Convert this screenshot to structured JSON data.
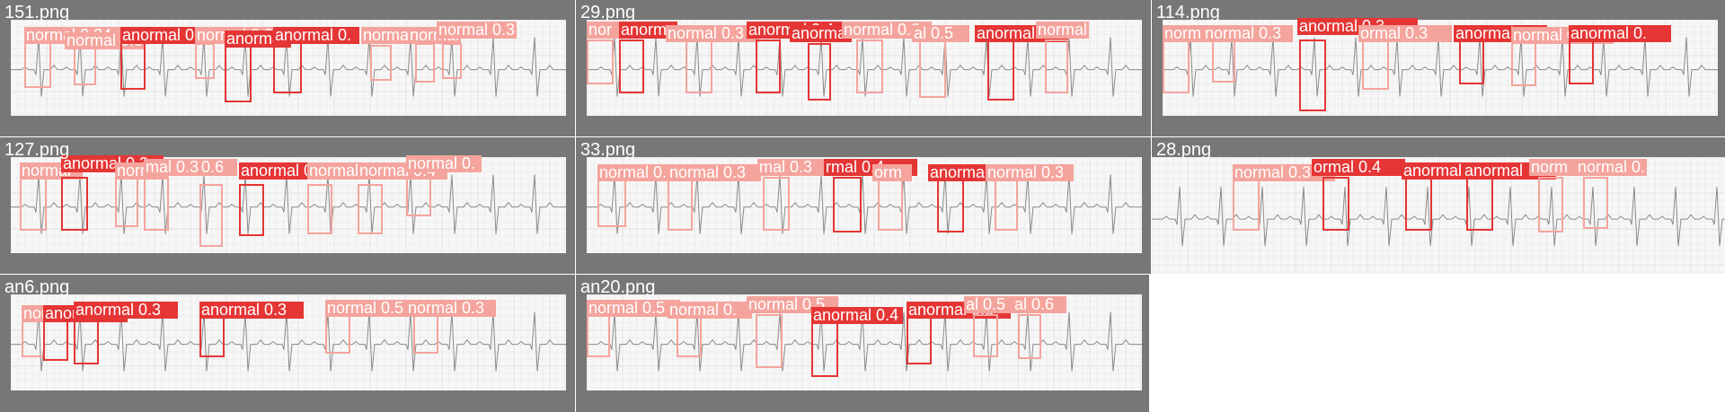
{
  "colors": {
    "background": "#ffffff",
    "tile": "#777777",
    "paper": "#f7f7f7",
    "grid": "#e1e1e1",
    "trace": "#8a8a8a",
    "anormal": "#e53535",
    "normal": "#f4a49d"
  },
  "tiles": [
    {
      "title": "151.png",
      "detections": [
        {
          "label": "normal 0.34",
          "cls": "normal"
        },
        {
          "label": "normal 0.3",
          "cls": "normal"
        },
        {
          "label": "anormal 0.3",
          "cls": "anormal"
        },
        {
          "label": "normal 0.3",
          "cls": "normal"
        },
        {
          "label": "anorma",
          "cls": "anormal"
        },
        {
          "label": "anormal 0.",
          "cls": "anormal"
        },
        {
          "label": "normal 0.3",
          "cls": "normal"
        },
        {
          "label": "normal",
          "cls": "normal"
        },
        {
          "label": "normal 0.3",
          "cls": "normal"
        }
      ]
    },
    {
      "title": "29.png",
      "detections": [
        {
          "label": "nor",
          "cls": "normal"
        },
        {
          "label": "anorma",
          "cls": "anormal"
        },
        {
          "label": "normal 0.3",
          "cls": "normal"
        },
        {
          "label": "anormal 0.4",
          "cls": "anormal"
        },
        {
          "label": "anormal",
          "cls": "anormal"
        },
        {
          "label": "normal 0.3",
          "cls": "normal"
        },
        {
          "label": "al 0.5",
          "cls": "normal"
        },
        {
          "label": "anormal 0.",
          "cls": "anormal"
        },
        {
          "label": "normal",
          "cls": "normal"
        }
      ]
    },
    {
      "title": "114.png",
      "detections": [
        {
          "label": "norm",
          "cls": "normal"
        },
        {
          "label": "normal 0.3",
          "cls": "normal"
        },
        {
          "label": "anormal 0.3",
          "cls": "anormal"
        },
        {
          "label": "ormal 0.3",
          "cls": "normal"
        },
        {
          "label": "anormal 0.3",
          "cls": "anormal"
        },
        {
          "label": "normal 0.3",
          "cls": "normal"
        },
        {
          "label": "anormal 0.",
          "cls": "anormal"
        }
      ]
    },
    {
      "title": "127.png",
      "detections": [
        {
          "label": "normal",
          "cls": "normal"
        },
        {
          "label": "anormal 0.3",
          "cls": "anormal"
        },
        {
          "label": "normal",
          "cls": "normal"
        },
        {
          "label": "mal 0.3",
          "cls": "normal"
        },
        {
          "label": "0.6",
          "cls": "normal"
        },
        {
          "label": "anormal 0.3",
          "cls": "anormal"
        },
        {
          "label": "normal 0.4",
          "cls": "normal"
        },
        {
          "label": "normal 0.4",
          "cls": "normal"
        },
        {
          "label": "normal 0.",
          "cls": "normal"
        }
      ]
    },
    {
      "title": "33.png",
      "detections": [
        {
          "label": "normal 0.",
          "cls": "normal"
        },
        {
          "label": "normal 0.3",
          "cls": "normal"
        },
        {
          "label": "mal 0.3",
          "cls": "normal"
        },
        {
          "label": "rmal 0.4",
          "cls": "anormal"
        },
        {
          "label": "orm",
          "cls": "normal"
        },
        {
          "label": "anormal",
          "cls": "anormal"
        },
        {
          "label": "normal 0.3",
          "cls": "normal"
        }
      ]
    },
    {
      "title": "28.png",
      "detections": [
        {
          "label": "normal 0.3",
          "cls": "normal"
        },
        {
          "label": "ormal 0.4",
          "cls": "anormal"
        },
        {
          "label": "anormal",
          "cls": "anormal"
        },
        {
          "label": "anormal",
          "cls": "anormal"
        },
        {
          "label": "norm",
          "cls": "normal"
        },
        {
          "label": "normal 0.",
          "cls": "normal"
        }
      ]
    },
    {
      "title": "an6.png",
      "detections": [
        {
          "label": "nor",
          "cls": "normal"
        },
        {
          "label": "anormal",
          "cls": "anormal"
        },
        {
          "label": "anormal 0.3",
          "cls": "anormal"
        },
        {
          "label": "anormal 0.3",
          "cls": "anormal"
        },
        {
          "label": "normal 0.5",
          "cls": "normal"
        },
        {
          "label": "normal 0.3",
          "cls": "normal"
        }
      ]
    },
    {
      "title": "an20.png",
      "detections": [
        {
          "label": "normal 0.5",
          "cls": "normal"
        },
        {
          "label": "normal 0.",
          "cls": "normal"
        },
        {
          "label": "normal 0.5",
          "cls": "normal"
        },
        {
          "label": "anormal 0.4",
          "cls": "anormal"
        },
        {
          "label": "anormal 0.3",
          "cls": "anormal"
        },
        {
          "label": "al 0.5",
          "cls": "normal"
        },
        {
          "label": "al 0.6",
          "cls": "normal"
        }
      ]
    }
  ]
}
